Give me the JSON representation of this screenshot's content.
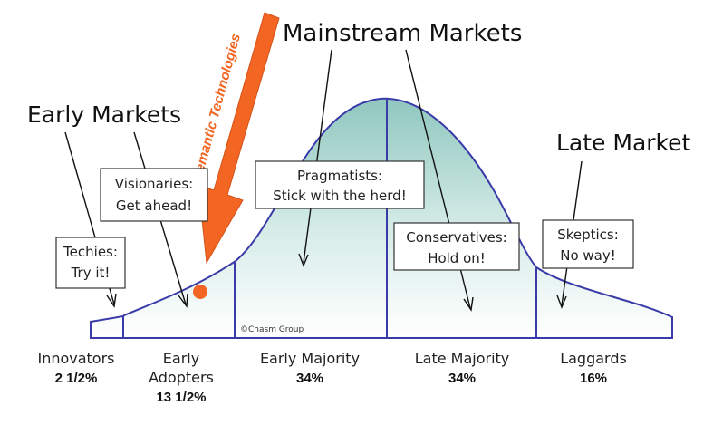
{
  "headings": {
    "mainstream": "Mainstream Markets",
    "early": "Early Markets",
    "late": "Late Market"
  },
  "arrow": {
    "label": "Semantic Technologies",
    "color": "#F26522"
  },
  "marker_color": "#F26522",
  "boxes": {
    "techies": [
      "Techies:",
      "Try it!"
    ],
    "visionaries": [
      "Visionaries:",
      "Get ahead!"
    ],
    "pragmatists": [
      "Pragmatists:",
      "Stick with the herd!"
    ],
    "conservatives": [
      "Conservatives:",
      "Hold on!"
    ],
    "skeptics": [
      "Skeptics:",
      "No way!"
    ]
  },
  "segments": {
    "innovators": {
      "label": [
        "Innovators"
      ],
      "percent": "2 1/2%"
    },
    "early_adopters": {
      "label": [
        "Early",
        "Adopters"
      ],
      "percent": "13 1/2%"
    },
    "early_majority": {
      "label": [
        "Early Majority"
      ],
      "percent": "34%"
    },
    "late_majority": {
      "label": [
        "Late Majority"
      ],
      "percent": "34%"
    },
    "laggards": {
      "label": [
        "Laggards"
      ],
      "percent": "16%"
    }
  },
  "copyright": "©Chasm Group",
  "colors": {
    "curve": "#3a3aa8",
    "fill_top": "#9fcfc8",
    "fill_bottom": "#ffffff"
  }
}
